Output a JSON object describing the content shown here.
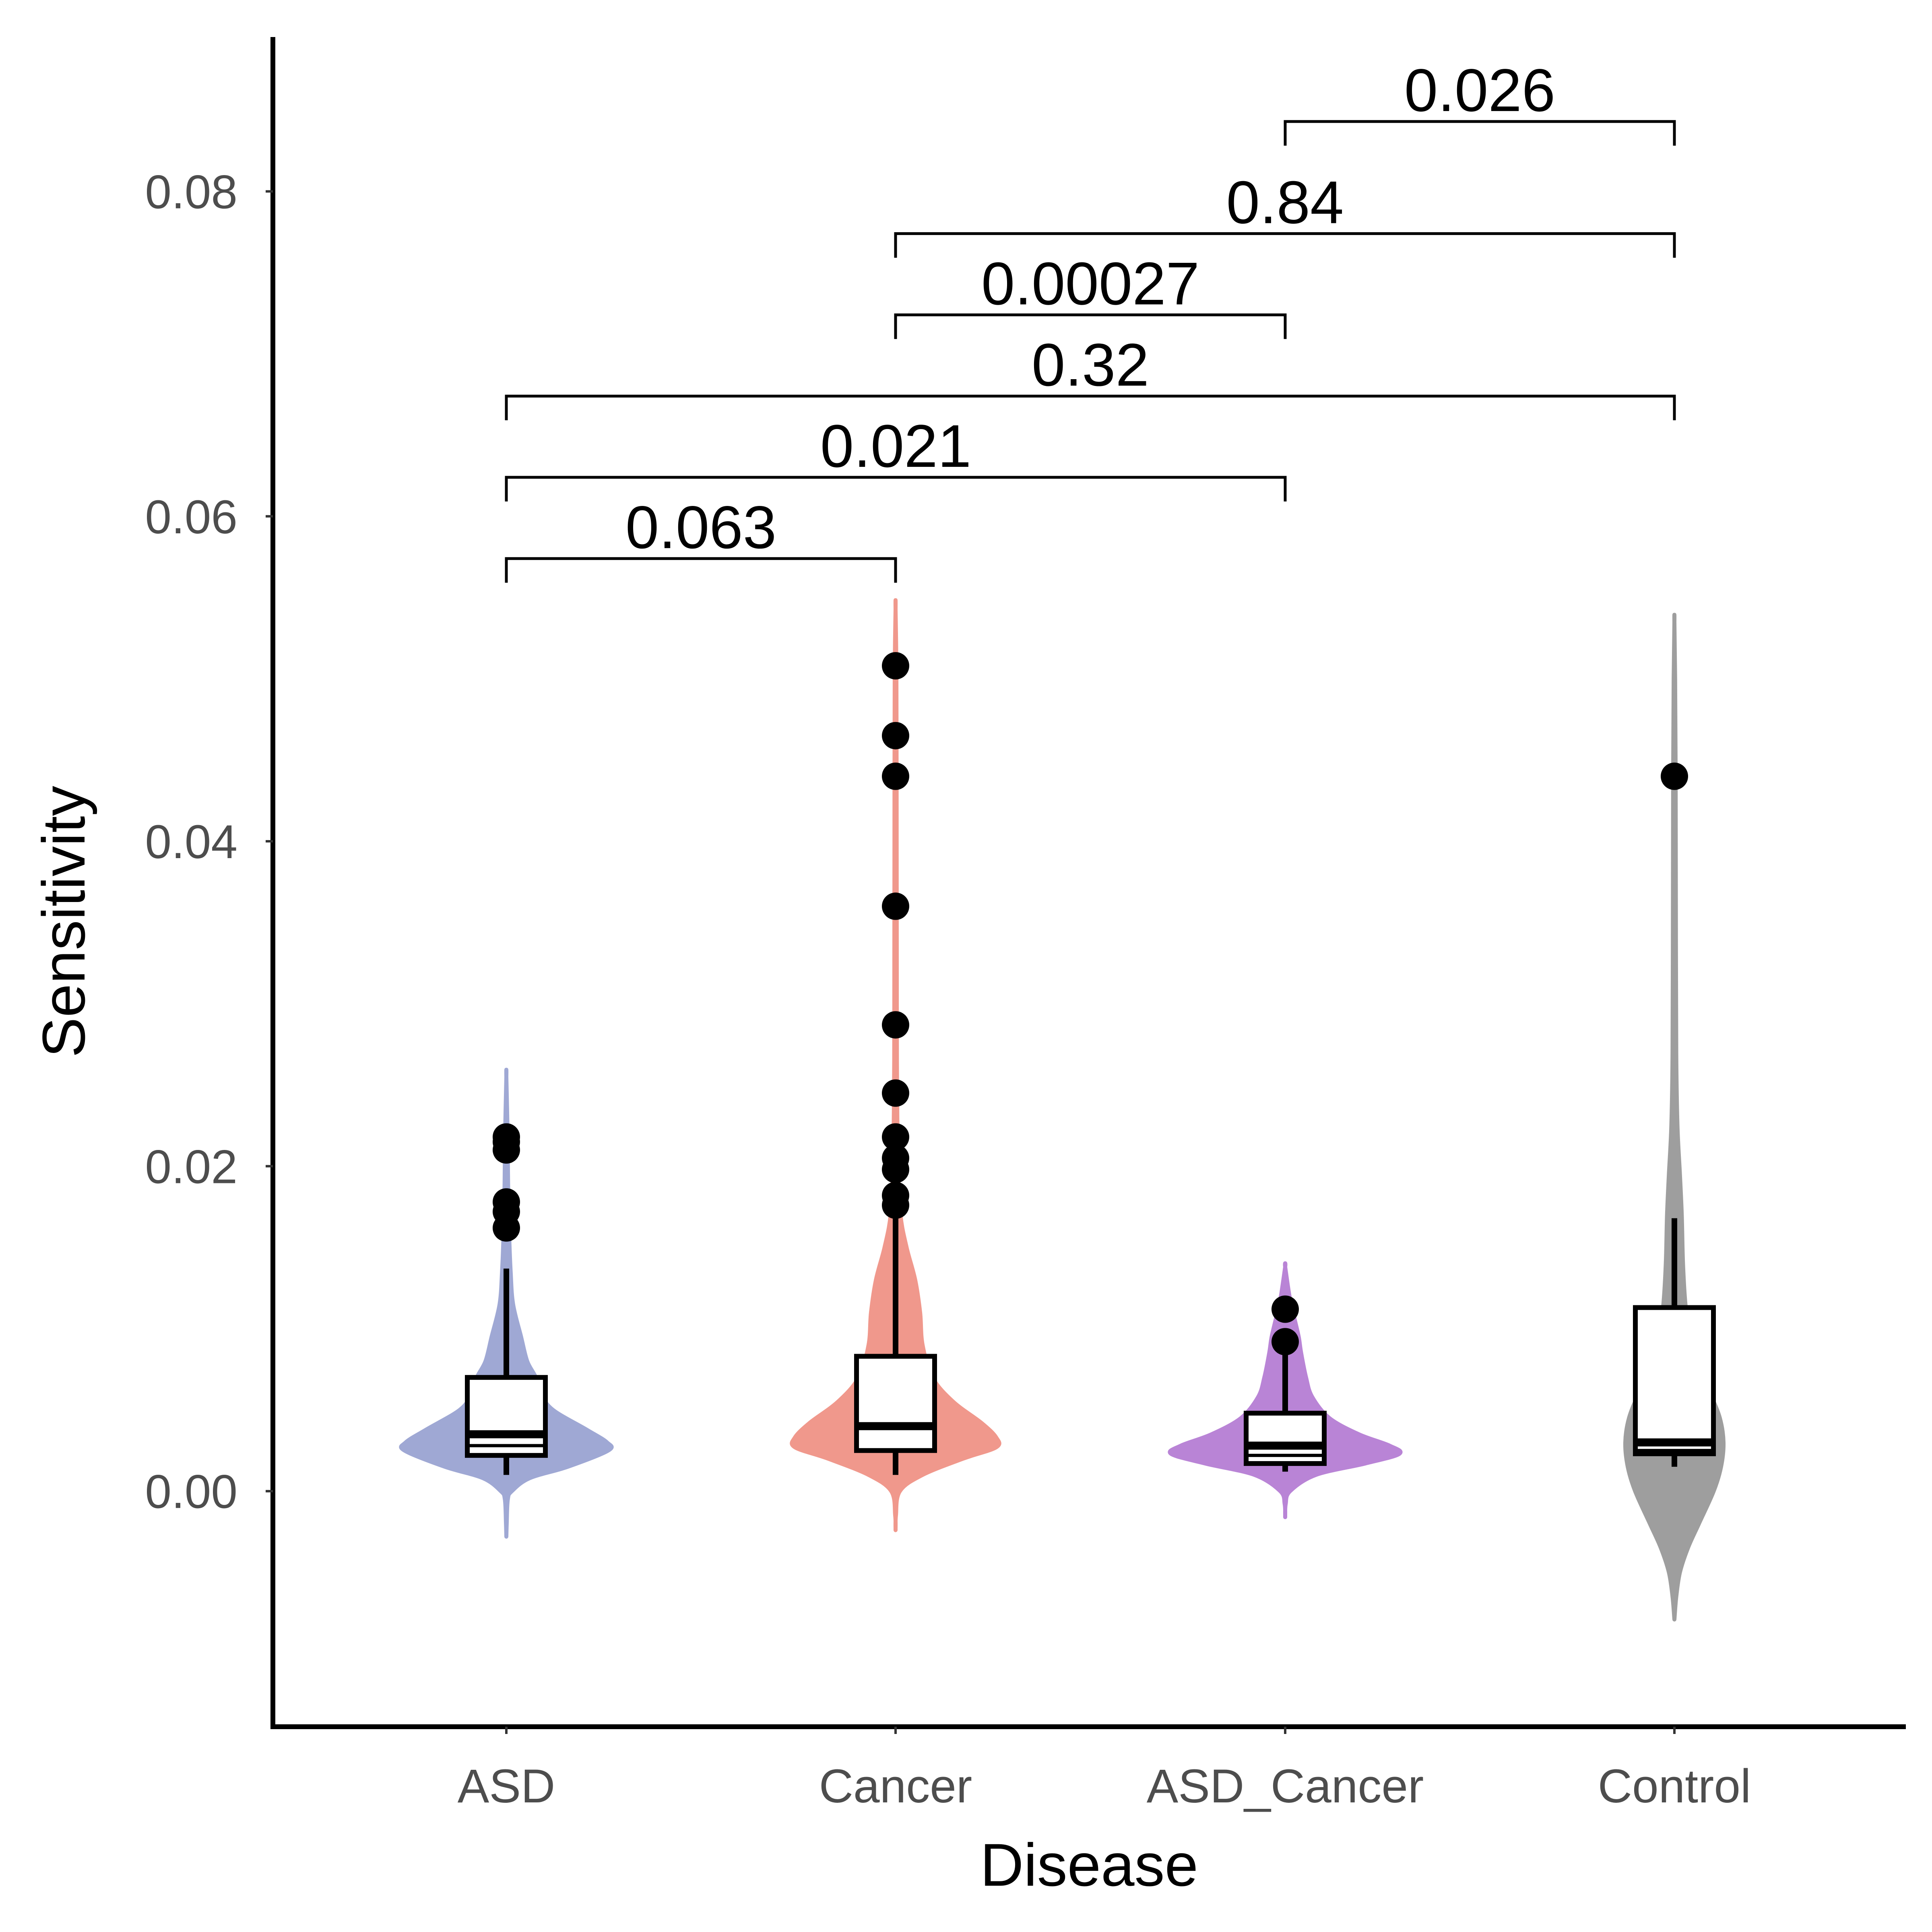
{
  "chart_data": {
    "type": "violin",
    "xlabel": "Disease",
    "ylabel": "Sensitivity",
    "categories": [
      "ASD",
      "Cancer",
      "ASD_Cancer",
      "Control"
    ],
    "ylim": [
      -0.0145,
      0.0895
    ],
    "yticks": [
      0.0,
      0.02,
      0.04,
      0.06,
      0.08
    ],
    "ytick_labels": [
      "0.00",
      "0.02",
      "0.04",
      "0.06",
      "0.08"
    ],
    "grid": false,
    "legend": "none",
    "colors": {
      "ASD": "#9fa8d4",
      "Cancer": "#f0988c",
      "ASD_Cancer": "#b984d6",
      "Control": "#9e9e9e"
    },
    "groups": [
      {
        "name": "ASD",
        "violin": {
          "min": -0.0028,
          "max": 0.0255,
          "profile": [
            [
              -0.0028,
              0.0
            ],
            [
              -0.002,
              0.003
            ],
            [
              -0.0005,
              0.012
            ],
            [
              0.0,
              0.045
            ],
            [
              0.0008,
              0.19
            ],
            [
              0.0015,
              0.5
            ],
            [
              0.0025,
              0.83
            ],
            [
              0.003,
              0.82
            ],
            [
              0.0038,
              0.65
            ],
            [
              0.005,
              0.38
            ],
            [
              0.006,
              0.28
            ],
            [
              0.007,
              0.24
            ],
            [
              0.008,
              0.17
            ],
            [
              0.0095,
              0.12
            ],
            [
              0.0115,
              0.055
            ],
            [
              0.0135,
              0.035
            ],
            [
              0.016,
              0.022
            ],
            [
              0.019,
              0.014
            ],
            [
              0.022,
              0.01
            ],
            [
              0.0255,
              0.0
            ]
          ]
        },
        "box": {
          "whisker_low": 0.001,
          "q1": 0.0022,
          "median": 0.0035,
          "q3": 0.007,
          "whisker_high": 0.0137,
          "mean_line": 0.0028
        },
        "outliers": [
          0.0218,
          0.0215,
          0.021,
          0.0178,
          0.0172,
          0.0162
        ]
      },
      {
        "name": "Cancer",
        "violin": {
          "min": -0.0024,
          "max": 0.0543,
          "profile": [
            [
              -0.0024,
              0.0
            ],
            [
              -0.0015,
              0.003
            ],
            [
              0.0,
              0.035
            ],
            [
              0.001,
              0.22
            ],
            [
              0.002,
              0.55
            ],
            [
              0.0027,
              0.82
            ],
            [
              0.0033,
              0.82
            ],
            [
              0.0042,
              0.7
            ],
            [
              0.0055,
              0.47
            ],
            [
              0.007,
              0.3
            ],
            [
              0.009,
              0.22
            ],
            [
              0.011,
              0.2
            ],
            [
              0.013,
              0.16
            ],
            [
              0.015,
              0.09
            ],
            [
              0.017,
              0.04
            ],
            [
              0.02,
              0.02
            ],
            [
              0.025,
              0.012
            ],
            [
              0.03,
              0.01
            ],
            [
              0.04,
              0.009
            ],
            [
              0.05,
              0.007
            ],
            [
              0.0543,
              0.0
            ]
          ]
        },
        "box": {
          "whisker_low": 0.001,
          "q1": 0.0025,
          "median": 0.004,
          "q3": 0.0083,
          "whisker_high": 0.017,
          "mean_line": 0.004
        },
        "outliers": [
          0.0508,
          0.0465,
          0.044,
          0.036,
          0.0287,
          0.0245,
          0.0218,
          0.0205,
          0.0198,
          0.0182,
          0.0176
        ]
      },
      {
        "name": "ASD_Cancer",
        "violin": {
          "min": -0.0016,
          "max": 0.0138,
          "profile": [
            [
              -0.0016,
              0.0
            ],
            [
              -0.0008,
              0.004
            ],
            [
              0.0,
              0.04
            ],
            [
              0.001,
              0.25
            ],
            [
              0.0017,
              0.65
            ],
            [
              0.0023,
              0.93
            ],
            [
              0.0028,
              0.85
            ],
            [
              0.0035,
              0.6
            ],
            [
              0.0045,
              0.36
            ],
            [
              0.0058,
              0.22
            ],
            [
              0.007,
              0.17
            ],
            [
              0.0085,
              0.13
            ],
            [
              0.0095,
              0.11
            ],
            [
              0.0108,
              0.07
            ],
            [
              0.012,
              0.035
            ],
            [
              0.0138,
              0.0
            ]
          ]
        },
        "box": {
          "whisker_low": 0.0012,
          "q1": 0.0017,
          "median": 0.0028,
          "q3": 0.0048,
          "whisker_high": 0.009,
          "mean_line": 0.0022
        },
        "outliers": [
          0.0112,
          0.0092
        ]
      },
      {
        "name": "Control",
        "violin": {
          "min": -0.0079,
          "max": 0.0535,
          "profile": [
            [
              -0.0079,
              0.0
            ],
            [
              -0.0065,
              0.015
            ],
            [
              -0.005,
              0.045
            ],
            [
              -0.0035,
              0.11
            ],
            [
              -0.002,
              0.2
            ],
            [
              0.0,
              0.32
            ],
            [
              0.0015,
              0.38
            ],
            [
              0.003,
              0.4
            ],
            [
              0.0045,
              0.37
            ],
            [
              0.006,
              0.29
            ],
            [
              0.0075,
              0.19
            ],
            [
              0.009,
              0.13
            ],
            [
              0.0115,
              0.09
            ],
            [
              0.014,
              0.07
            ],
            [
              0.017,
              0.06
            ],
            [
              0.0195,
              0.045
            ],
            [
              0.0225,
              0.025
            ],
            [
              0.027,
              0.015
            ],
            [
              0.035,
              0.012
            ],
            [
              0.044,
              0.01
            ],
            [
              0.05,
              0.006
            ],
            [
              0.0535,
              0.0
            ]
          ]
        },
        "box": {
          "whisker_low": 0.0015,
          "q1": 0.0023,
          "median": 0.003,
          "q3": 0.0113,
          "whisker_high": 0.0168,
          "mean_line": 0.0025
        },
        "outliers": [
          0.044
        ]
      }
    ],
    "comparisons": [
      {
        "groups": [
          "ASD",
          "Cancer"
        ],
        "p": "0.063",
        "y": 0.0574
      },
      {
        "groups": [
          "ASD",
          "ASD_Cancer"
        ],
        "p": "0.021",
        "y": 0.0624
      },
      {
        "groups": [
          "ASD",
          "Control"
        ],
        "p": "0.32",
        "y": 0.0674
      },
      {
        "groups": [
          "Cancer",
          "ASD_Cancer"
        ],
        "p": "0.00027",
        "y": 0.0724
      },
      {
        "groups": [
          "Cancer",
          "Control"
        ],
        "p": "0.84",
        "y": 0.0774
      },
      {
        "groups": [
          "ASD_Cancer",
          "Control"
        ],
        "p": "0.026",
        "y": 0.0843
      }
    ]
  }
}
